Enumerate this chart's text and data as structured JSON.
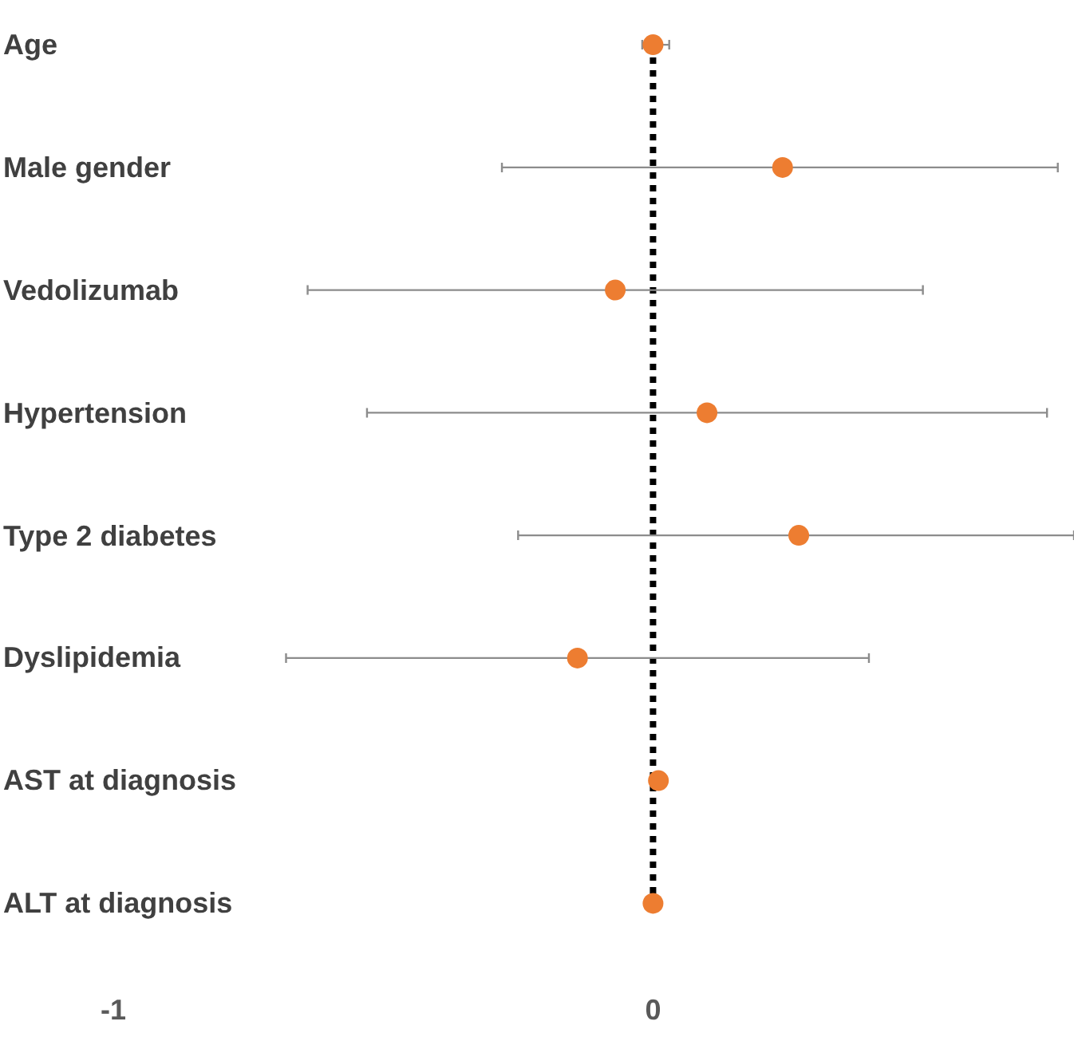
{
  "chart_data": {
    "type": "scatter",
    "categories": [
      "Age",
      "Male gender",
      "Vedolizumab",
      "Hypertension",
      "Type 2 diabetes",
      "Dyslipidemia",
      "AST at diagnosis",
      "ALT at diagnosis"
    ],
    "orientation": "horizontal",
    "color": "#ed7d31",
    "values": [
      0.0,
      0.24,
      -0.07,
      0.1,
      0.27,
      -0.14,
      0.01,
      0.0
    ],
    "errors": [
      [
        -0.02,
        0.03
      ],
      [
        -0.28,
        0.75
      ],
      [
        -0.64,
        0.5
      ],
      [
        -0.53,
        0.73
      ],
      [
        -0.25,
        0.78
      ],
      [
        -0.68,
        0.4
      ],
      null,
      null
    ],
    "xlim": [
      -1.21,
      0.78
    ],
    "xticks": [
      -1,
      0
    ],
    "ref_lines": [
      {
        "axis": "x",
        "value": 0,
        "color": "#000000",
        "line_style": "dotted"
      }
    ],
    "marker": "circle",
    "grid": false
  }
}
